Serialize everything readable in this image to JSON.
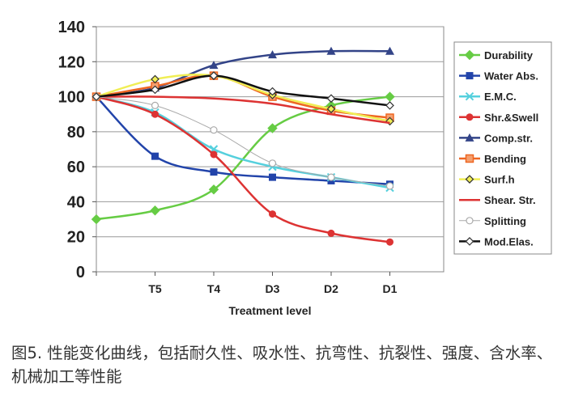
{
  "chart_data": {
    "type": "line",
    "categories": [
      "",
      "T5",
      "T4",
      "D3",
      "D2",
      "D1"
    ],
    "xlabel": "Treatment level",
    "ylabel": "",
    "ylim": [
      0,
      140
    ],
    "yticks": [
      0,
      20,
      40,
      60,
      80,
      100,
      120,
      140
    ],
    "grid": "horizontal",
    "legend_position": "right",
    "series": [
      {
        "name": "Durability",
        "color": "#66cc44",
        "marker": "diamond",
        "values": [
          30,
          35,
          47,
          82,
          95,
          100
        ]
      },
      {
        "name": "Water Abs.",
        "color": "#2244aa",
        "marker": "square",
        "values": [
          100,
          66,
          57,
          54,
          52,
          50
        ]
      },
      {
        "name": "E.M.C.",
        "color": "#55d0dd",
        "marker": "x",
        "values": [
          100,
          91,
          70,
          60,
          54,
          48
        ]
      },
      {
        "name": "Shr.&Swell",
        "color": "#dd3333",
        "marker": "circle",
        "values": [
          100,
          90,
          67,
          33,
          22,
          17
        ]
      },
      {
        "name": "Comp.str.",
        "color": "#334488",
        "marker": "triangle",
        "values": [
          100,
          105,
          118,
          124,
          126,
          126
        ]
      },
      {
        "name": "Bending",
        "color": "#ee6622",
        "marker": "square-open",
        "values": [
          100,
          106,
          112,
          100,
          92,
          88
        ]
      },
      {
        "name": "Surf.h",
        "color": "#f0ee55",
        "marker": "diamond-open",
        "values": [
          100,
          110,
          112,
          101,
          93,
          86
        ]
      },
      {
        "name": "Shear. Str.",
        "color": "#dd3333",
        "marker": "none",
        "values": [
          100,
          100,
          99,
          96,
          90,
          85
        ]
      },
      {
        "name": "Splitting",
        "color": "#aaaaaa",
        "marker": "circle-open",
        "values": [
          100,
          95,
          81,
          62,
          54,
          49
        ]
      },
      {
        "name": "Mod.Elas.",
        "color": "#111111",
        "marker": "diamond-open",
        "values": [
          100,
          104,
          112,
          103,
          99,
          95
        ]
      }
    ]
  },
  "caption": "图5. 性能变化曲线，包括耐久性、吸水性、抗弯性、抗裂性、强度、含水率、机械加工等性能"
}
